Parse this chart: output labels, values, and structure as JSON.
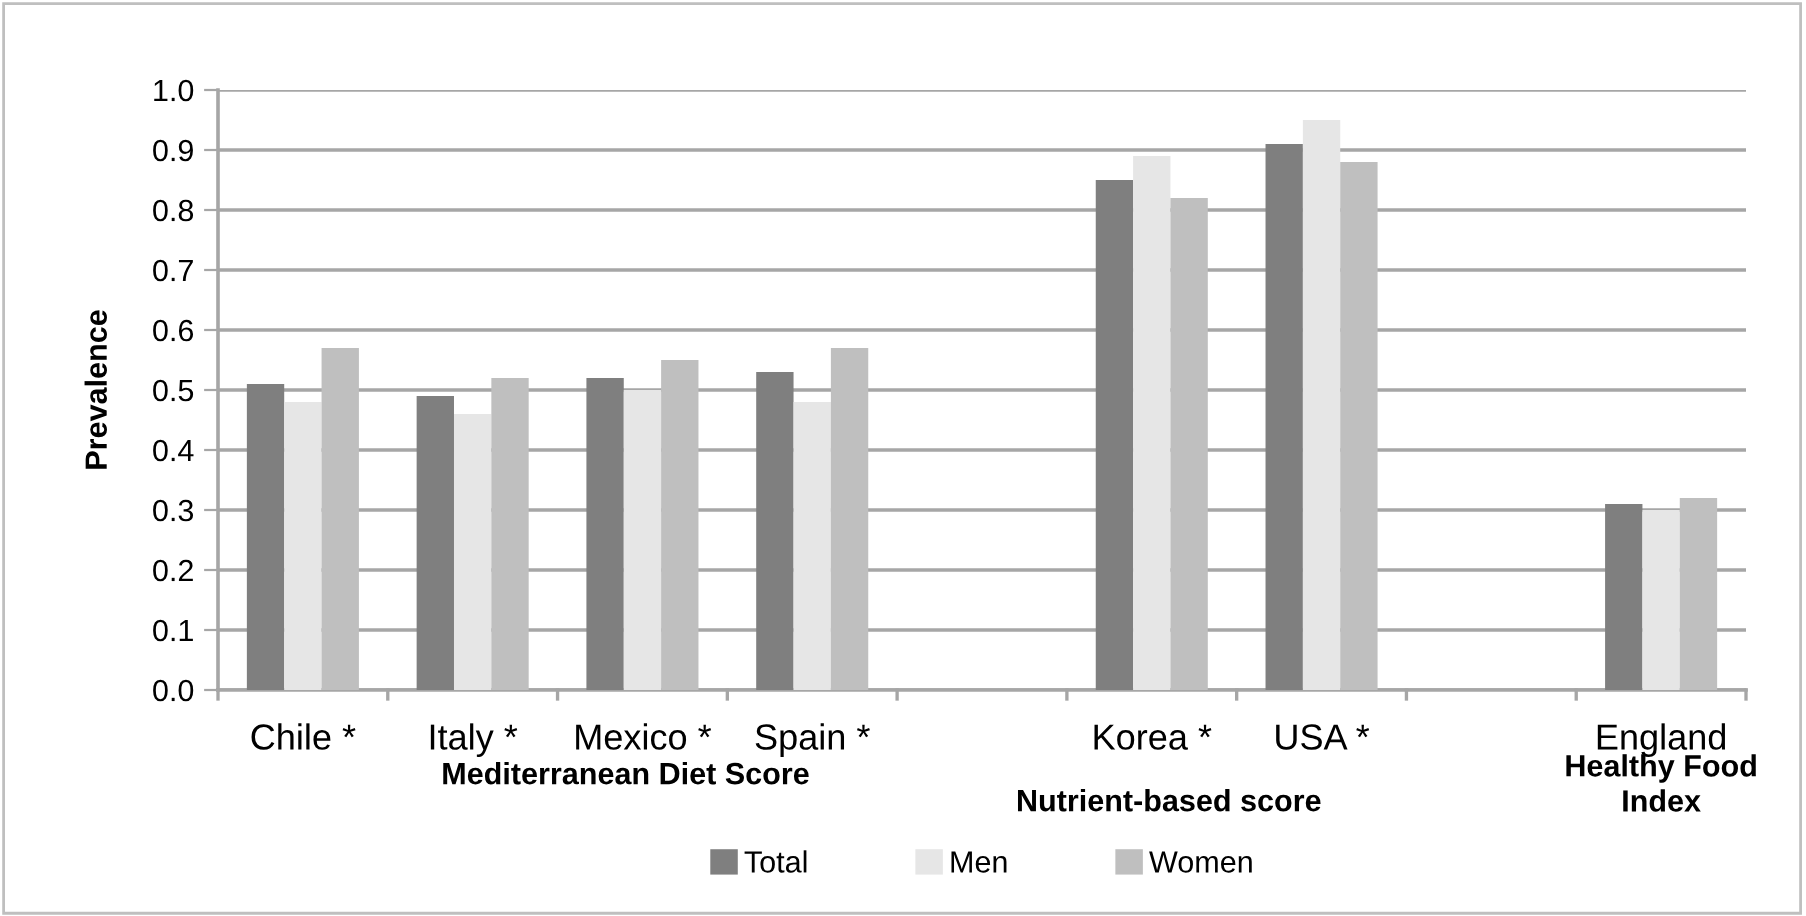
{
  "chart_data": {
    "type": "bar",
    "ylabel": "Prevalence",
    "categories": [
      "Chile *",
      "Italy *",
      "Mexico *",
      "Spain *",
      null,
      "Korea *",
      "USA *",
      null,
      "England"
    ],
    "series": [
      {
        "name": "Total",
        "color": "#7f7f7f",
        "values": [
          0.51,
          0.49,
          0.52,
          0.53,
          null,
          0.85,
          0.91,
          null,
          0.31
        ]
      },
      {
        "name": "Men",
        "color": "#e6e6e6",
        "values": [
          0.48,
          0.46,
          0.5,
          0.48,
          null,
          0.89,
          0.95,
          null,
          0.3
        ]
      },
      {
        "name": "Women",
        "color": "#bfbfbf",
        "values": [
          0.57,
          0.52,
          0.55,
          0.57,
          null,
          0.82,
          0.88,
          null,
          0.32
        ]
      }
    ],
    "ylim": [
      0,
      1.0
    ],
    "yticks": [
      {
        "value": 0,
        "label": "0.0"
      },
      {
        "value": 0.1,
        "label": "0.1"
      },
      {
        "value": 0.2,
        "label": "0.2"
      },
      {
        "value": 0.3,
        "label": "0.3"
      },
      {
        "value": 0.4,
        "label": "0.4"
      },
      {
        "value": 0.5,
        "label": "0.5"
      },
      {
        "value": 0.6,
        "label": "0.6"
      },
      {
        "value": 0.7,
        "label": "0.7"
      },
      {
        "value": 0.8,
        "label": "0.8"
      },
      {
        "value": 0.9,
        "label": "0.9"
      },
      {
        "value": 1.0,
        "label": "1.0"
      }
    ],
    "grid": "y",
    "legend": "bottom",
    "annotations": [
      "Mediterranean Diet Score",
      "Nutrient-based score",
      "Healthy Food\nIndex"
    ]
  }
}
